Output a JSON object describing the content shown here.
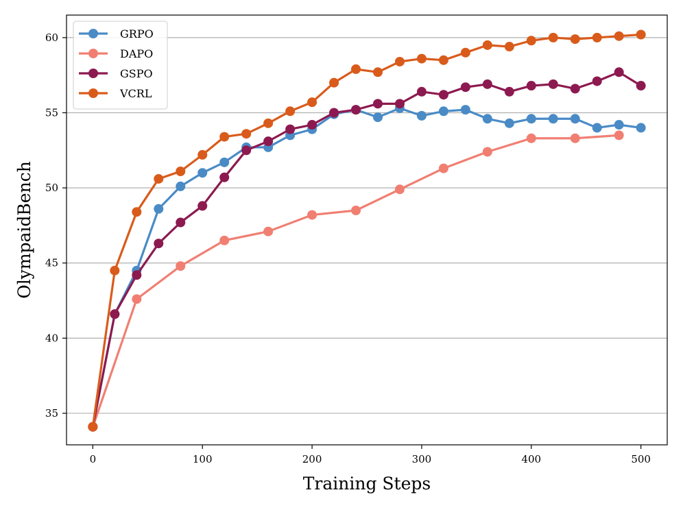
{
  "chart_data": {
    "type": "line",
    "title": "",
    "xlabel": "Training Steps",
    "ylabel": "OlympaidBench",
    "xlim": [
      -24,
      524
    ],
    "ylim": [
      32.9,
      61.5
    ],
    "xticks": [
      0,
      100,
      200,
      300,
      400,
      500
    ],
    "yticks": [
      35,
      40,
      45,
      50,
      55,
      60
    ],
    "grid": "horizontal",
    "legend_position": "top-left",
    "series": [
      {
        "name": "GRPO",
        "color": "#4A8BC6",
        "points": [
          [
            0,
            34.1
          ],
          [
            20,
            41.6
          ],
          [
            40,
            44.5
          ],
          [
            60,
            48.6
          ],
          [
            80,
            50.1
          ],
          [
            100,
            51.0
          ],
          [
            120,
            51.7
          ],
          [
            140,
            52.7
          ],
          [
            160,
            52.7
          ],
          [
            180,
            53.5
          ],
          [
            200,
            53.9
          ],
          [
            220,
            54.9
          ],
          [
            240,
            55.2
          ],
          [
            260,
            54.7
          ],
          [
            280,
            55.3
          ],
          [
            300,
            54.8
          ],
          [
            320,
            55.1
          ],
          [
            340,
            55.2
          ],
          [
            360,
            54.6
          ],
          [
            380,
            54.3
          ],
          [
            400,
            54.6
          ],
          [
            420,
            54.6
          ],
          [
            440,
            54.6
          ],
          [
            460,
            54.0
          ],
          [
            480,
            54.2
          ],
          [
            500,
            54.0
          ]
        ]
      },
      {
        "name": "DAPO",
        "color": "#F07F72",
        "points": [
          [
            0,
            34.1
          ],
          [
            40,
            42.6
          ],
          [
            80,
            44.8
          ],
          [
            120,
            46.5
          ],
          [
            160,
            47.1
          ],
          [
            200,
            48.2
          ],
          [
            240,
            48.5
          ],
          [
            280,
            49.9
          ],
          [
            320,
            51.3
          ],
          [
            360,
            52.4
          ],
          [
            400,
            53.3
          ],
          [
            440,
            53.3
          ],
          [
            480,
            53.5
          ]
        ]
      },
      {
        "name": "GSPO",
        "color": "#8C1A50",
        "points": [
          [
            0,
            34.1
          ],
          [
            20,
            41.6
          ],
          [
            40,
            44.2
          ],
          [
            60,
            46.3
          ],
          [
            80,
            47.7
          ],
          [
            100,
            48.8
          ],
          [
            120,
            50.7
          ],
          [
            140,
            52.5
          ],
          [
            160,
            53.1
          ],
          [
            180,
            53.9
          ],
          [
            200,
            54.2
          ],
          [
            220,
            55.0
          ],
          [
            240,
            55.2
          ],
          [
            260,
            55.6
          ],
          [
            280,
            55.6
          ],
          [
            300,
            56.4
          ],
          [
            320,
            56.2
          ],
          [
            340,
            56.7
          ],
          [
            360,
            56.9
          ],
          [
            380,
            56.4
          ],
          [
            400,
            56.8
          ],
          [
            420,
            56.9
          ],
          [
            440,
            56.6
          ],
          [
            460,
            57.1
          ],
          [
            480,
            57.7
          ],
          [
            500,
            56.8
          ]
        ]
      },
      {
        "name": "VCRL",
        "color": "#D95B1B",
        "points": [
          [
            0,
            34.1
          ],
          [
            20,
            44.5
          ],
          [
            40,
            48.4
          ],
          [
            60,
            50.6
          ],
          [
            80,
            51.1
          ],
          [
            100,
            52.2
          ],
          [
            120,
            53.4
          ],
          [
            140,
            53.6
          ],
          [
            160,
            54.3
          ],
          [
            180,
            55.1
          ],
          [
            200,
            55.7
          ],
          [
            220,
            57.0
          ],
          [
            240,
            57.9
          ],
          [
            260,
            57.7
          ],
          [
            280,
            58.4
          ],
          [
            300,
            58.6
          ],
          [
            320,
            58.5
          ],
          [
            340,
            59.0
          ],
          [
            360,
            59.5
          ],
          [
            380,
            59.4
          ],
          [
            400,
            59.8
          ],
          [
            420,
            60.0
          ],
          [
            440,
            59.9
          ],
          [
            460,
            60.0
          ],
          [
            480,
            60.1
          ],
          [
            500,
            60.2
          ]
        ]
      }
    ]
  }
}
